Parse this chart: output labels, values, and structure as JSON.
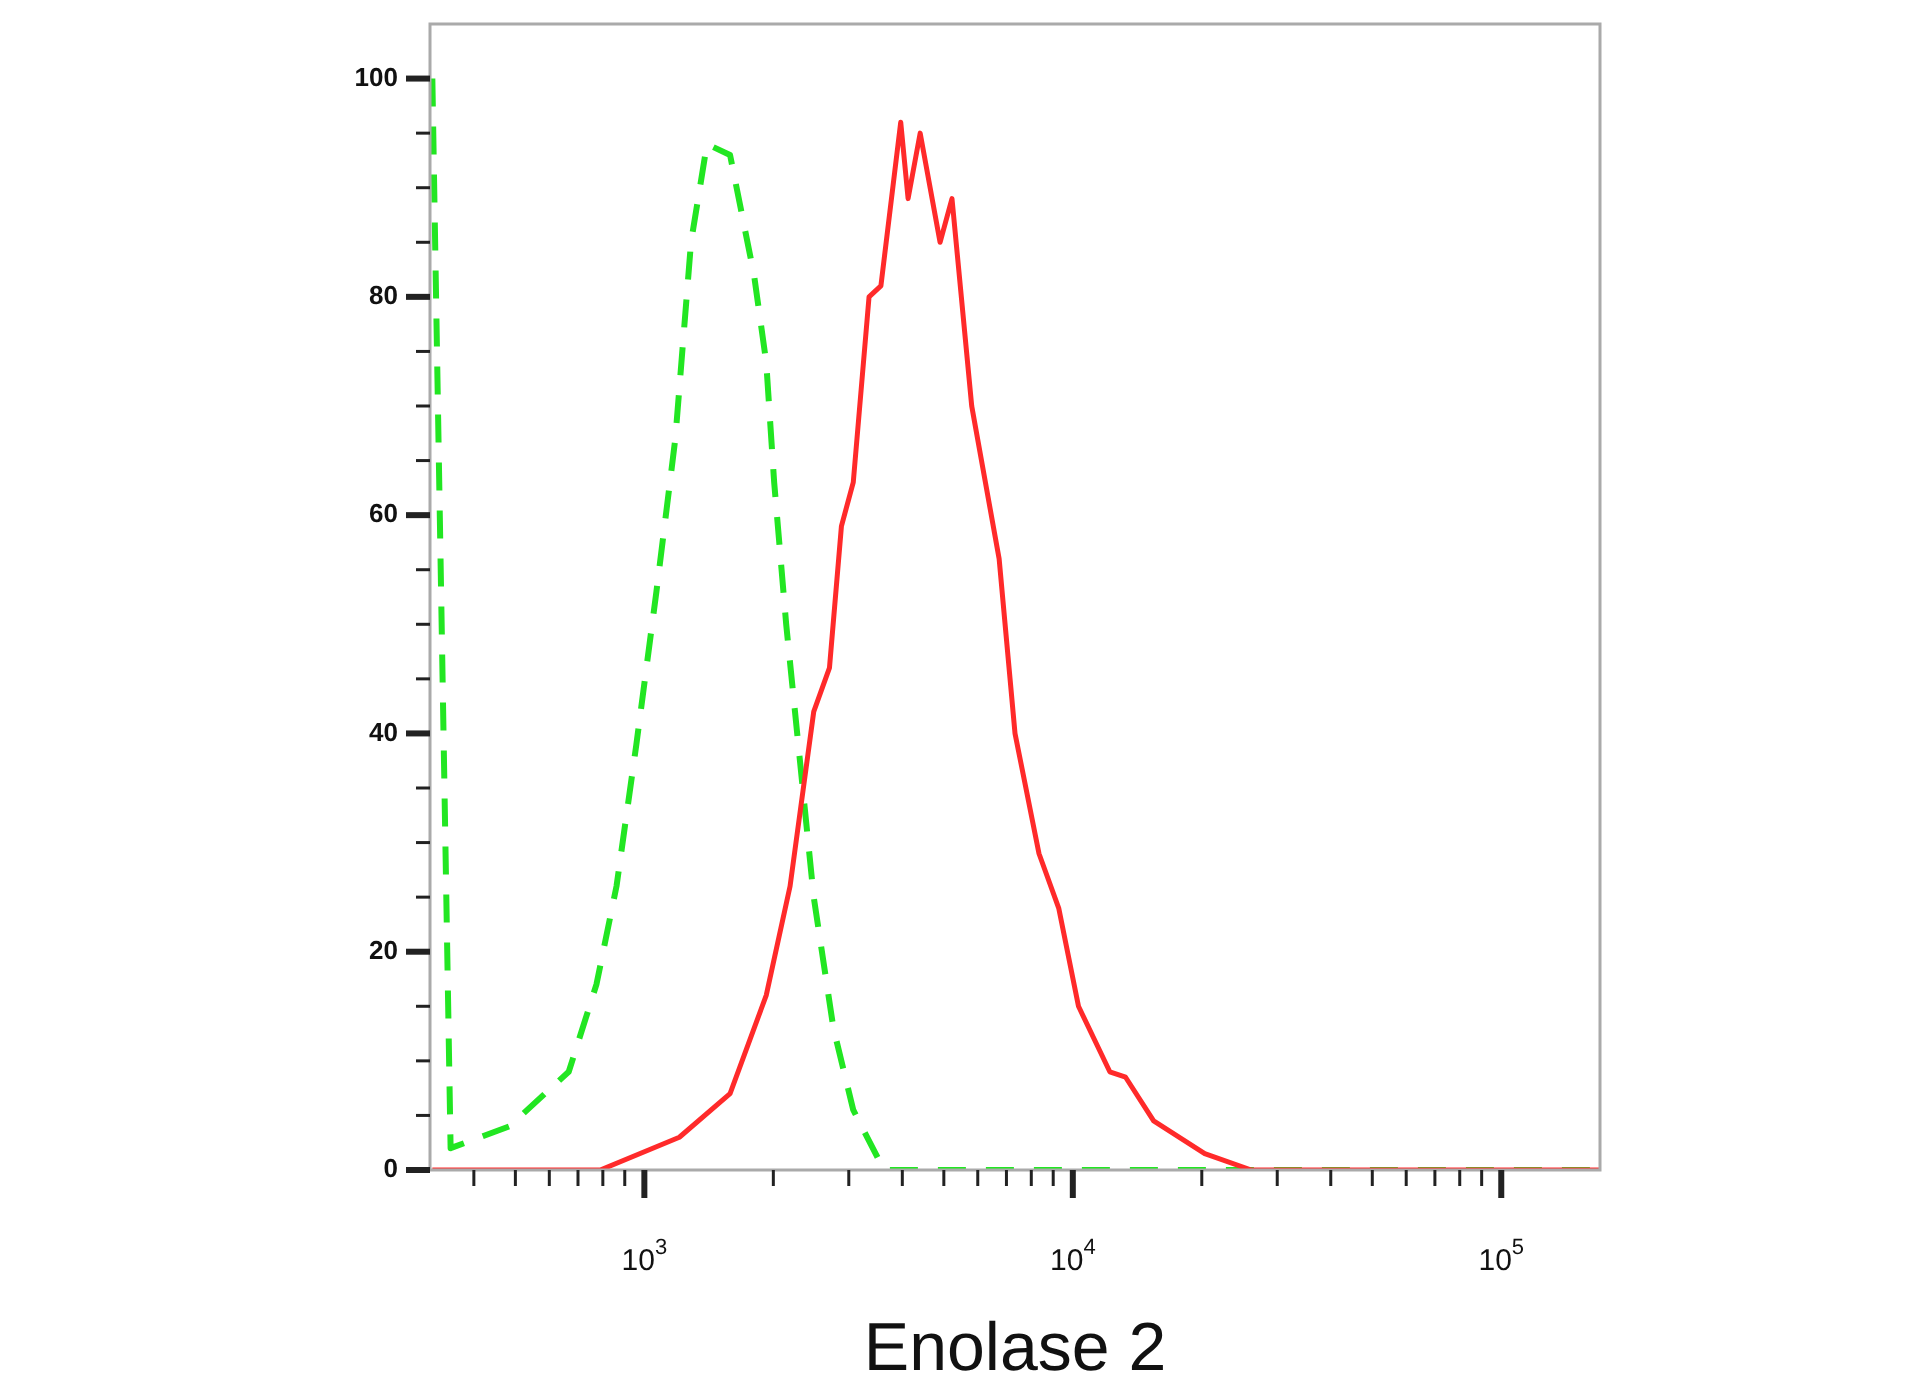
{
  "chart_data": {
    "type": "line",
    "xlabel": "Enolase 2",
    "log": "x",
    "xlim": [
      316,
      170000
    ],
    "ylim": [
      0,
      105
    ],
    "xticks": [
      {
        "value": 400,
        "label": null
      },
      {
        "value": 500,
        "label": null
      },
      {
        "value": 600,
        "label": null
      },
      {
        "value": 700,
        "label": null
      },
      {
        "value": 800,
        "label": null
      },
      {
        "value": 900,
        "label": null
      },
      {
        "value": 1000,
        "label": "10$^{3}$"
      },
      {
        "value": 2000,
        "label": null
      },
      {
        "value": 3000,
        "label": null
      },
      {
        "value": 4000,
        "label": null
      },
      {
        "value": 5000,
        "label": null
      },
      {
        "value": 6000,
        "label": null
      },
      {
        "value": 7000,
        "label": null
      },
      {
        "value": 8000,
        "label": null
      },
      {
        "value": 9000,
        "label": null
      },
      {
        "value": 10000,
        "label": "10$^{4}$"
      },
      {
        "value": 20000,
        "label": null
      },
      {
        "value": 30000,
        "label": null
      },
      {
        "value": 40000,
        "label": null
      },
      {
        "value": 50000,
        "label": null
      },
      {
        "value": 60000,
        "label": null
      },
      {
        "value": 70000,
        "label": null
      },
      {
        "value": 80000,
        "label": null
      },
      {
        "value": 90000,
        "label": null
      },
      {
        "value": 100000,
        "label": "10$^{5}$"
      }
    ],
    "yticks": [
      0,
      {
        "value": 5,
        "label": null
      },
      {
        "value": 10,
        "label": null
      },
      {
        "value": 15,
        "label": null
      },
      20,
      {
        "value": 25,
        "label": null
      },
      {
        "value": 30,
        "label": null
      },
      {
        "value": 35,
        "label": null
      },
      40,
      {
        "value": 45,
        "label": null
      },
      {
        "value": 50,
        "label": null
      },
      {
        "value": 55,
        "label": null
      },
      60,
      {
        "value": 65,
        "label": null
      },
      {
        "value": 70,
        "label": null
      },
      {
        "value": 75,
        "label": null
      },
      80,
      {
        "value": 85,
        "label": null
      },
      {
        "value": 90,
        "label": null
      },
      {
        "value": 95,
        "label": null
      },
      100
    ],
    "grid": false,
    "legend": false,
    "marker": "none",
    "series": [
      {
        "color": "#ff2a2a",
        "line_style": "solid",
        "x": [
          320,
          789,
          1207,
          1585,
          1925,
          2188,
          2485,
          2704,
          2884,
          3073,
          3345,
          3565,
          3966,
          4126,
          4403,
          4900,
          5224,
          5808,
          6730,
          7330,
          8337,
          9270,
          10310,
          12200,
          13280,
          15440,
          20320,
          26100,
          170000
        ],
        "values": [
          0,
          0,
          3,
          7,
          16,
          26,
          42,
          46,
          59,
          63,
          80,
          81,
          96,
          89,
          95,
          85,
          89,
          70,
          56,
          40,
          29,
          24,
          15,
          9,
          8.5,
          4.5,
          1.5,
          0,
          0
        ]
      },
      {
        "color": "#22e622",
        "line_style": "dashed",
        "x": [
          320,
          353,
          484,
          666,
          773,
          861,
          958,
          1067,
          1181,
          1285,
          1400,
          1585,
          1803,
          1925,
          2009,
          2143,
          2287,
          2485,
          2762,
          3073,
          3624,
          170000
        ],
        "values": [
          100,
          2,
          4,
          9,
          17,
          26,
          39,
          53,
          67,
          85,
          94,
          93,
          82,
          74,
          63,
          50,
          39,
          25,
          13,
          5.5,
          0,
          0
        ]
      }
    ]
  }
}
